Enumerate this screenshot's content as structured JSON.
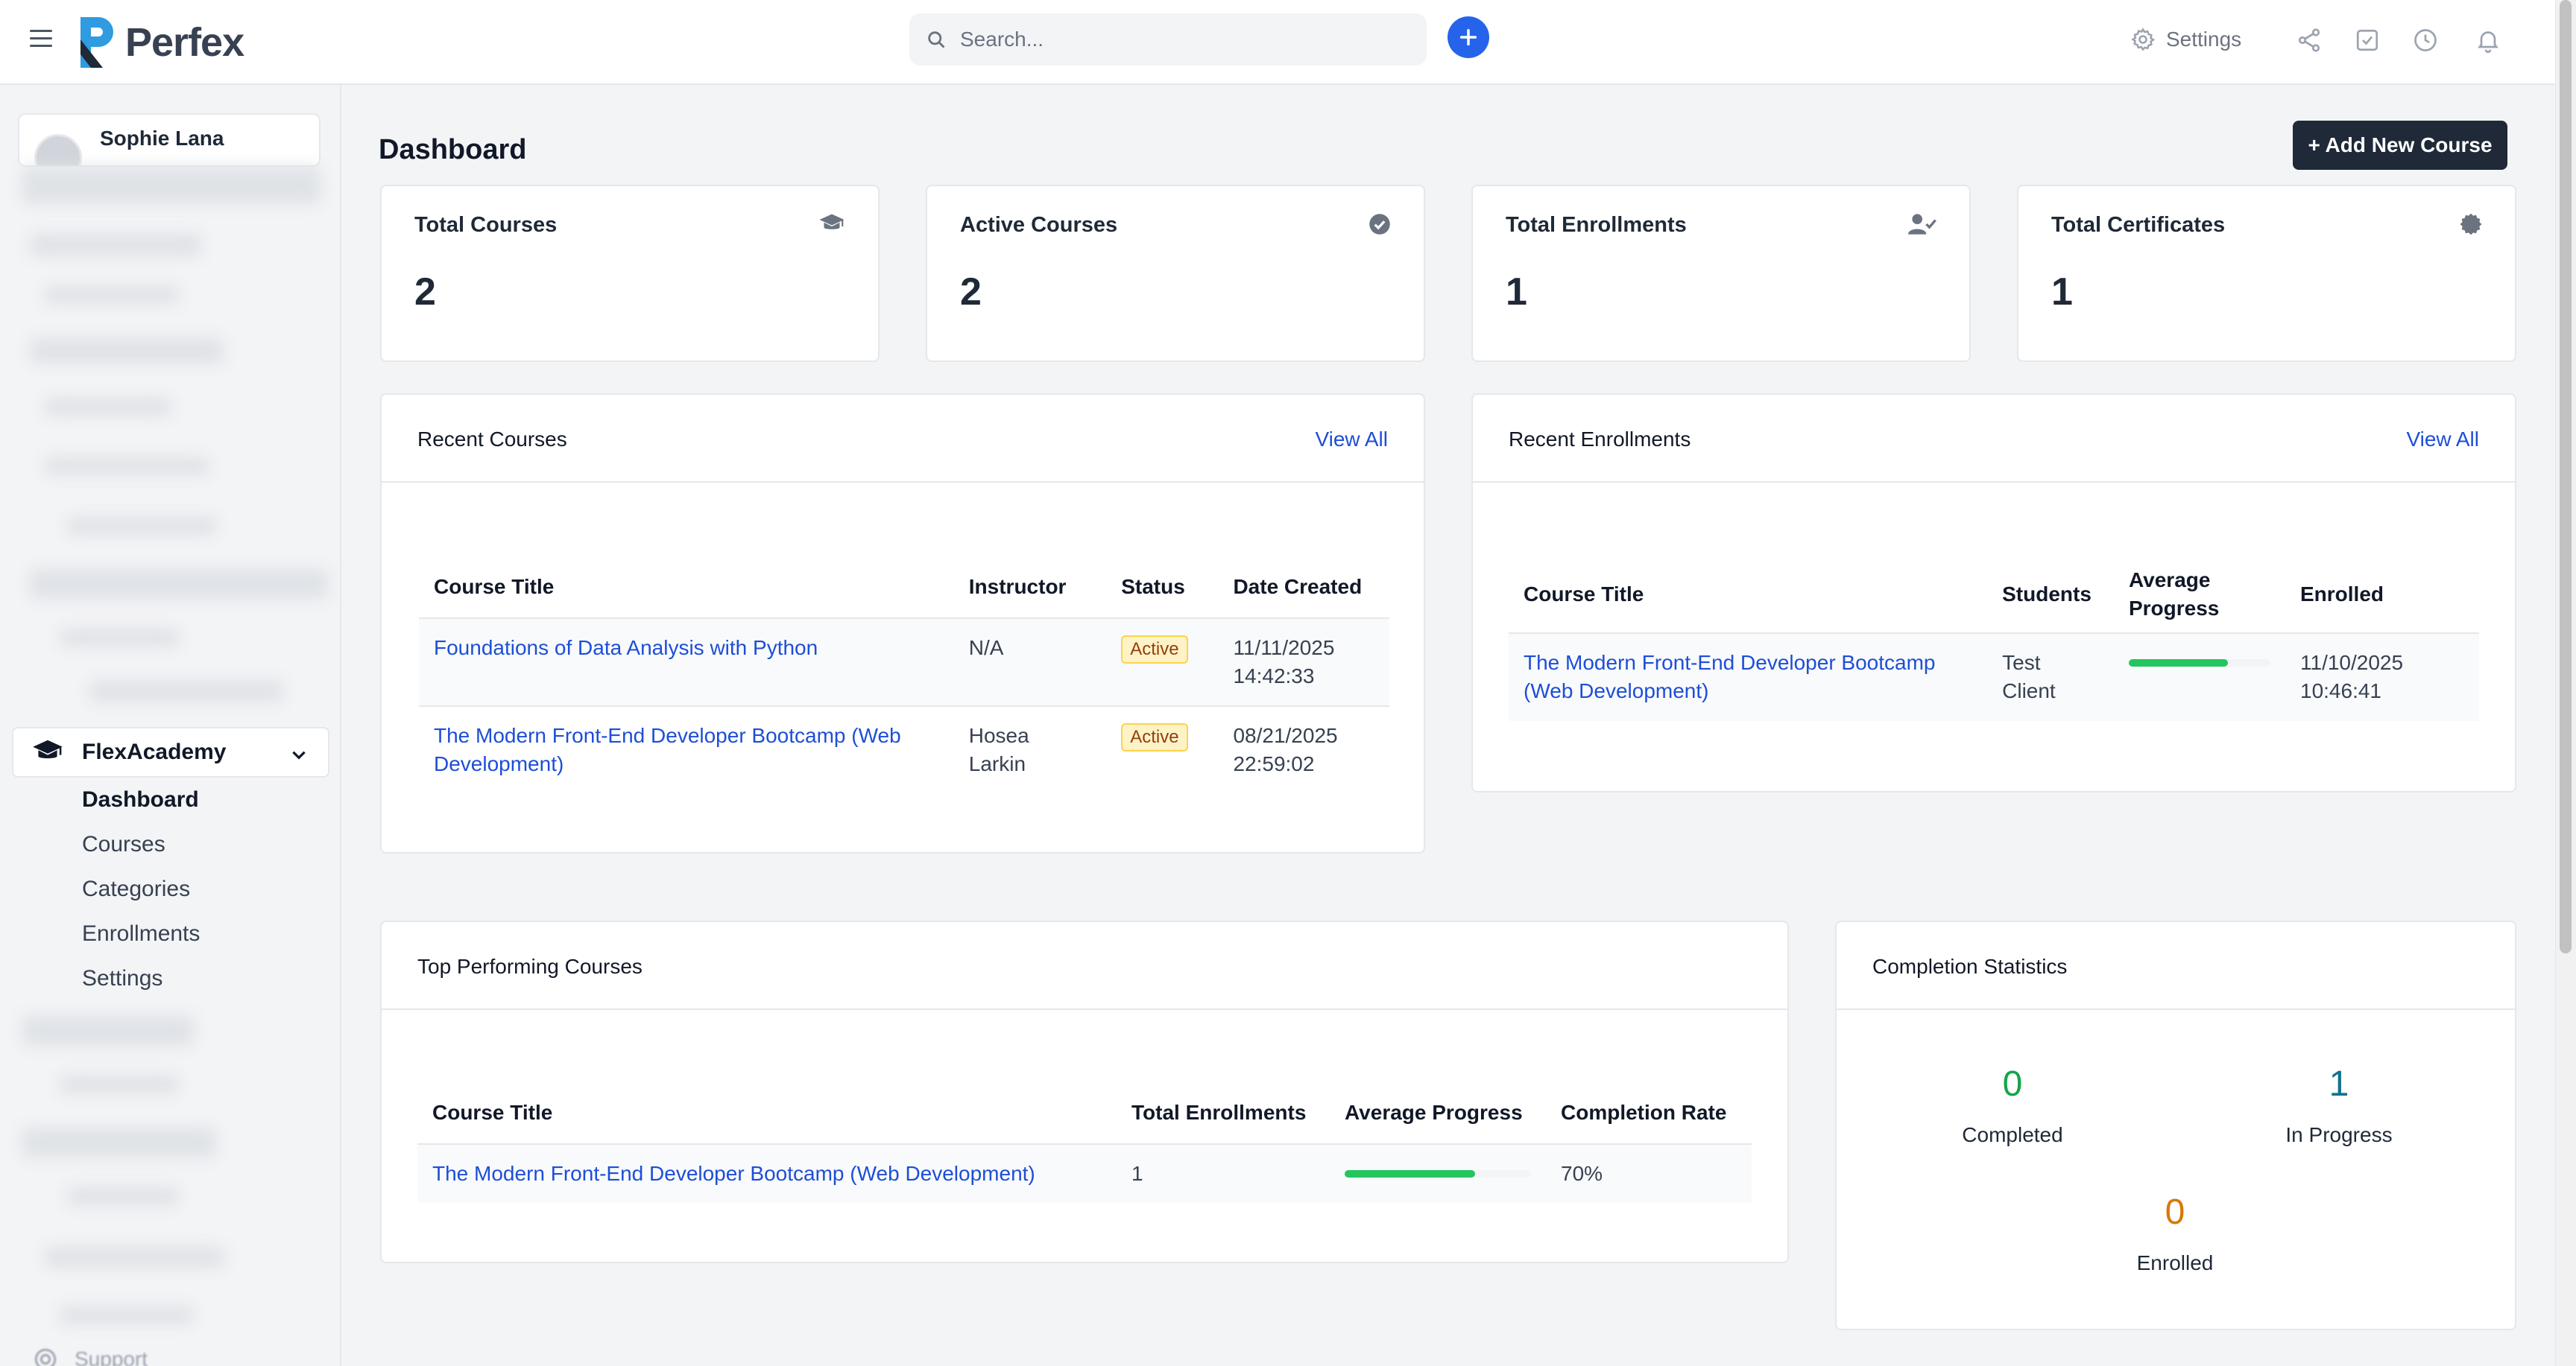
{
  "header": {
    "brand": "Perfex",
    "search_placeholder": "Search...",
    "settings_label": "Settings"
  },
  "sidebar": {
    "profile_name": "Sophie Lana",
    "module_label": "FlexAcademy",
    "items": [
      {
        "label": "Dashboard",
        "active": true
      },
      {
        "label": "Courses",
        "active": false
      },
      {
        "label": "Categories",
        "active": false
      },
      {
        "label": "Enrollments",
        "active": false
      },
      {
        "label": "Settings",
        "active": false
      }
    ],
    "support_label": "Support"
  },
  "page": {
    "title": "Dashboard",
    "add_button": "+ Add New Course"
  },
  "stats": [
    {
      "title": "Total Courses",
      "value": "2",
      "icon": "graduation-cap-icon"
    },
    {
      "title": "Active Courses",
      "value": "2",
      "icon": "check-circle-icon"
    },
    {
      "title": "Total Enrollments",
      "value": "1",
      "icon": "user-check-icon"
    },
    {
      "title": "Total Certificates",
      "value": "1",
      "icon": "certificate-icon"
    }
  ],
  "recent_courses": {
    "title": "Recent Courses",
    "view_all": "View All",
    "columns": [
      "Course Title",
      "Instructor",
      "Status",
      "Date Created"
    ],
    "rows": [
      {
        "title": "Foundations of Data Analysis with Python",
        "instructor": "N/A",
        "status": "Active",
        "date": "11/11/2025 14:42:33"
      },
      {
        "title": "The Modern Front-End Developer Bootcamp (Web Development)",
        "instructor": "Hosea Larkin",
        "status": "Active",
        "date": "08/21/2025 22:59:02"
      }
    ]
  },
  "recent_enrollments": {
    "title": "Recent Enrollments",
    "view_all": "View All",
    "columns": [
      "Course Title",
      "Students",
      "Average Progress",
      "Enrolled"
    ],
    "rows": [
      {
        "title": "The Modern Front-End Developer Bootcamp (Web Development)",
        "students": "Test Client",
        "progress": 70,
        "enrolled": "11/10/2025 10:46:41"
      }
    ]
  },
  "top_courses": {
    "title": "Top Performing Courses",
    "columns": [
      "Course Title",
      "Total Enrollments",
      "Average Progress",
      "Completion Rate"
    ],
    "rows": [
      {
        "title": "The Modern Front-End Developer Bootcamp (Web Development)",
        "enrollments": "1",
        "progress": 70,
        "completion": "70%"
      }
    ]
  },
  "completion_stats": {
    "title": "Completion Statistics",
    "completed": {
      "value": "0",
      "label": "Completed",
      "color": "#16a34a"
    },
    "in_progress": {
      "value": "1",
      "label": "In Progress",
      "color": "#0e7490"
    },
    "enrolled": {
      "value": "0",
      "label": "Enrolled",
      "color": "#d97706"
    }
  },
  "colors": {
    "accent": "#2563eb",
    "link": "#1d4ed8",
    "progress": "#22c55e",
    "dark_button": "#1f2937"
  }
}
